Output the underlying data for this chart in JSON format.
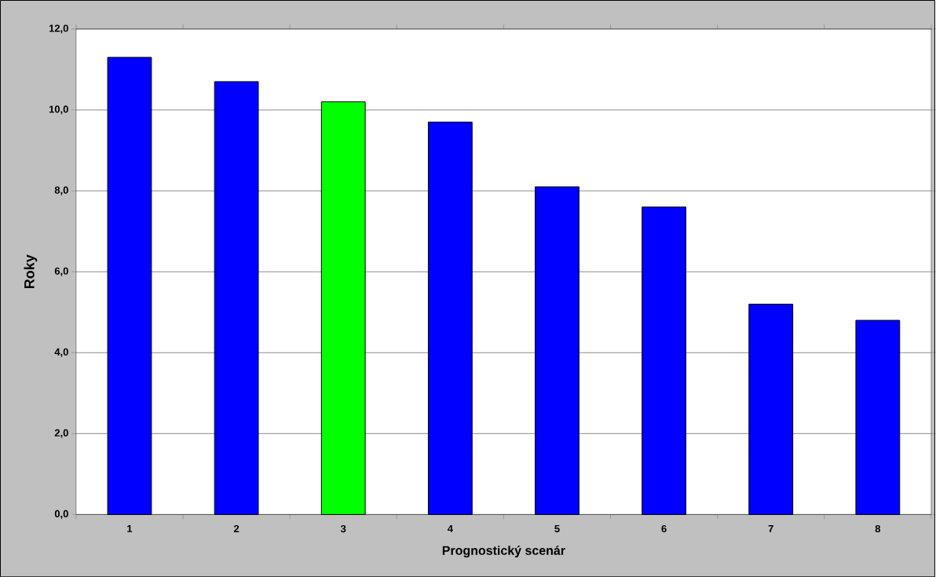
{
  "chart_data": {
    "type": "bar",
    "xlabel": "Prognostický scenár",
    "ylabel": "Roky",
    "categories": [
      "1",
      "2",
      "3",
      "4",
      "5",
      "6",
      "7",
      "8"
    ],
    "values": [
      11.3,
      10.7,
      10.2,
      9.7,
      8.1,
      7.6,
      5.2,
      4.8
    ],
    "colors": [
      "#0000ff",
      "#0000ff",
      "#00ff00",
      "#0000ff",
      "#0000ff",
      "#0000ff",
      "#0000ff",
      "#0000ff"
    ],
    "ylim": [
      0,
      12
    ],
    "yticks": [
      {
        "value": 0,
        "label": "0,0"
      },
      {
        "value": 2,
        "label": "2,0"
      },
      {
        "value": 4,
        "label": "4,0"
      },
      {
        "value": 6,
        "label": "6,0"
      },
      {
        "value": 8,
        "label": "8,0"
      },
      {
        "value": 10,
        "label": "10,0"
      },
      {
        "value": 12,
        "label": "12,0"
      }
    ],
    "grid": "y"
  }
}
